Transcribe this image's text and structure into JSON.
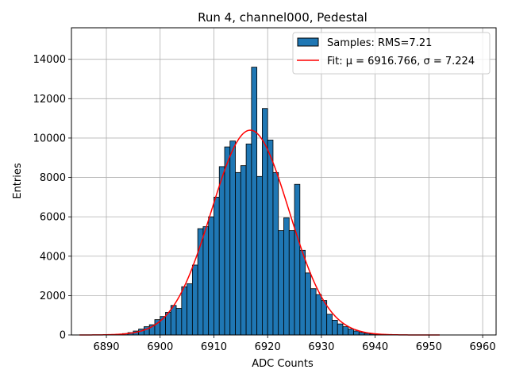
{
  "chart_data": {
    "type": "bar",
    "title": "Run 4, channel000, Pedestal",
    "xlabel": "ADC Counts",
    "ylabel": "Entries",
    "xlim": [
      6883.5,
      6962.5
    ],
    "ylim": [
      0,
      15600
    ],
    "xticks": [
      6890,
      6900,
      6910,
      6920,
      6930,
      6940,
      6950,
      6960
    ],
    "yticks": [
      0,
      2000,
      4000,
      6000,
      8000,
      10000,
      12000,
      14000
    ],
    "grid": true,
    "legend_position": "top-right",
    "bar_color": "#1f77b4",
    "fit_color": "#ff0000",
    "series": [
      {
        "name": "Samples: RMS=7.21",
        "type": "histogram",
        "bin_width": 1,
        "bin_starts": [
          6891,
          6892,
          6893,
          6894,
          6895,
          6896,
          6897,
          6898,
          6899,
          6900,
          6901,
          6902,
          6903,
          6904,
          6905,
          6906,
          6907,
          6908,
          6909,
          6910,
          6911,
          6912,
          6913,
          6914,
          6915,
          6916,
          6917,
          6918,
          6919,
          6920,
          6921,
          6922,
          6923,
          6924,
          6925,
          6926,
          6927,
          6928,
          6929,
          6930,
          6931,
          6932,
          6933,
          6934,
          6935,
          6936,
          6937,
          6938,
          6939,
          6940,
          6941,
          6942,
          6943,
          6944
        ],
        "values": [
          20,
          40,
          70,
          120,
          200,
          300,
          420,
          520,
          780,
          940,
          1150,
          1500,
          1350,
          2450,
          2600,
          3550,
          5400,
          5500,
          6000,
          7000,
          8550,
          9550,
          9850,
          8250,
          8600,
          9700,
          13600,
          8050,
          11500,
          9900,
          8250,
          5300,
          5950,
          5300,
          7650,
          4300,
          3150,
          2350,
          2050,
          1750,
          1050,
          750,
          560,
          420,
          300,
          200,
          130,
          80,
          50,
          30,
          20,
          10,
          5,
          3
        ]
      },
      {
        "name": "Fit: μ = 6916.766, σ = 7.224",
        "type": "gaussian",
        "mu": 6916.766,
        "sigma": 7.224,
        "amplitude": 10400,
        "x_range": [
          6885,
          6952
        ]
      }
    ]
  }
}
